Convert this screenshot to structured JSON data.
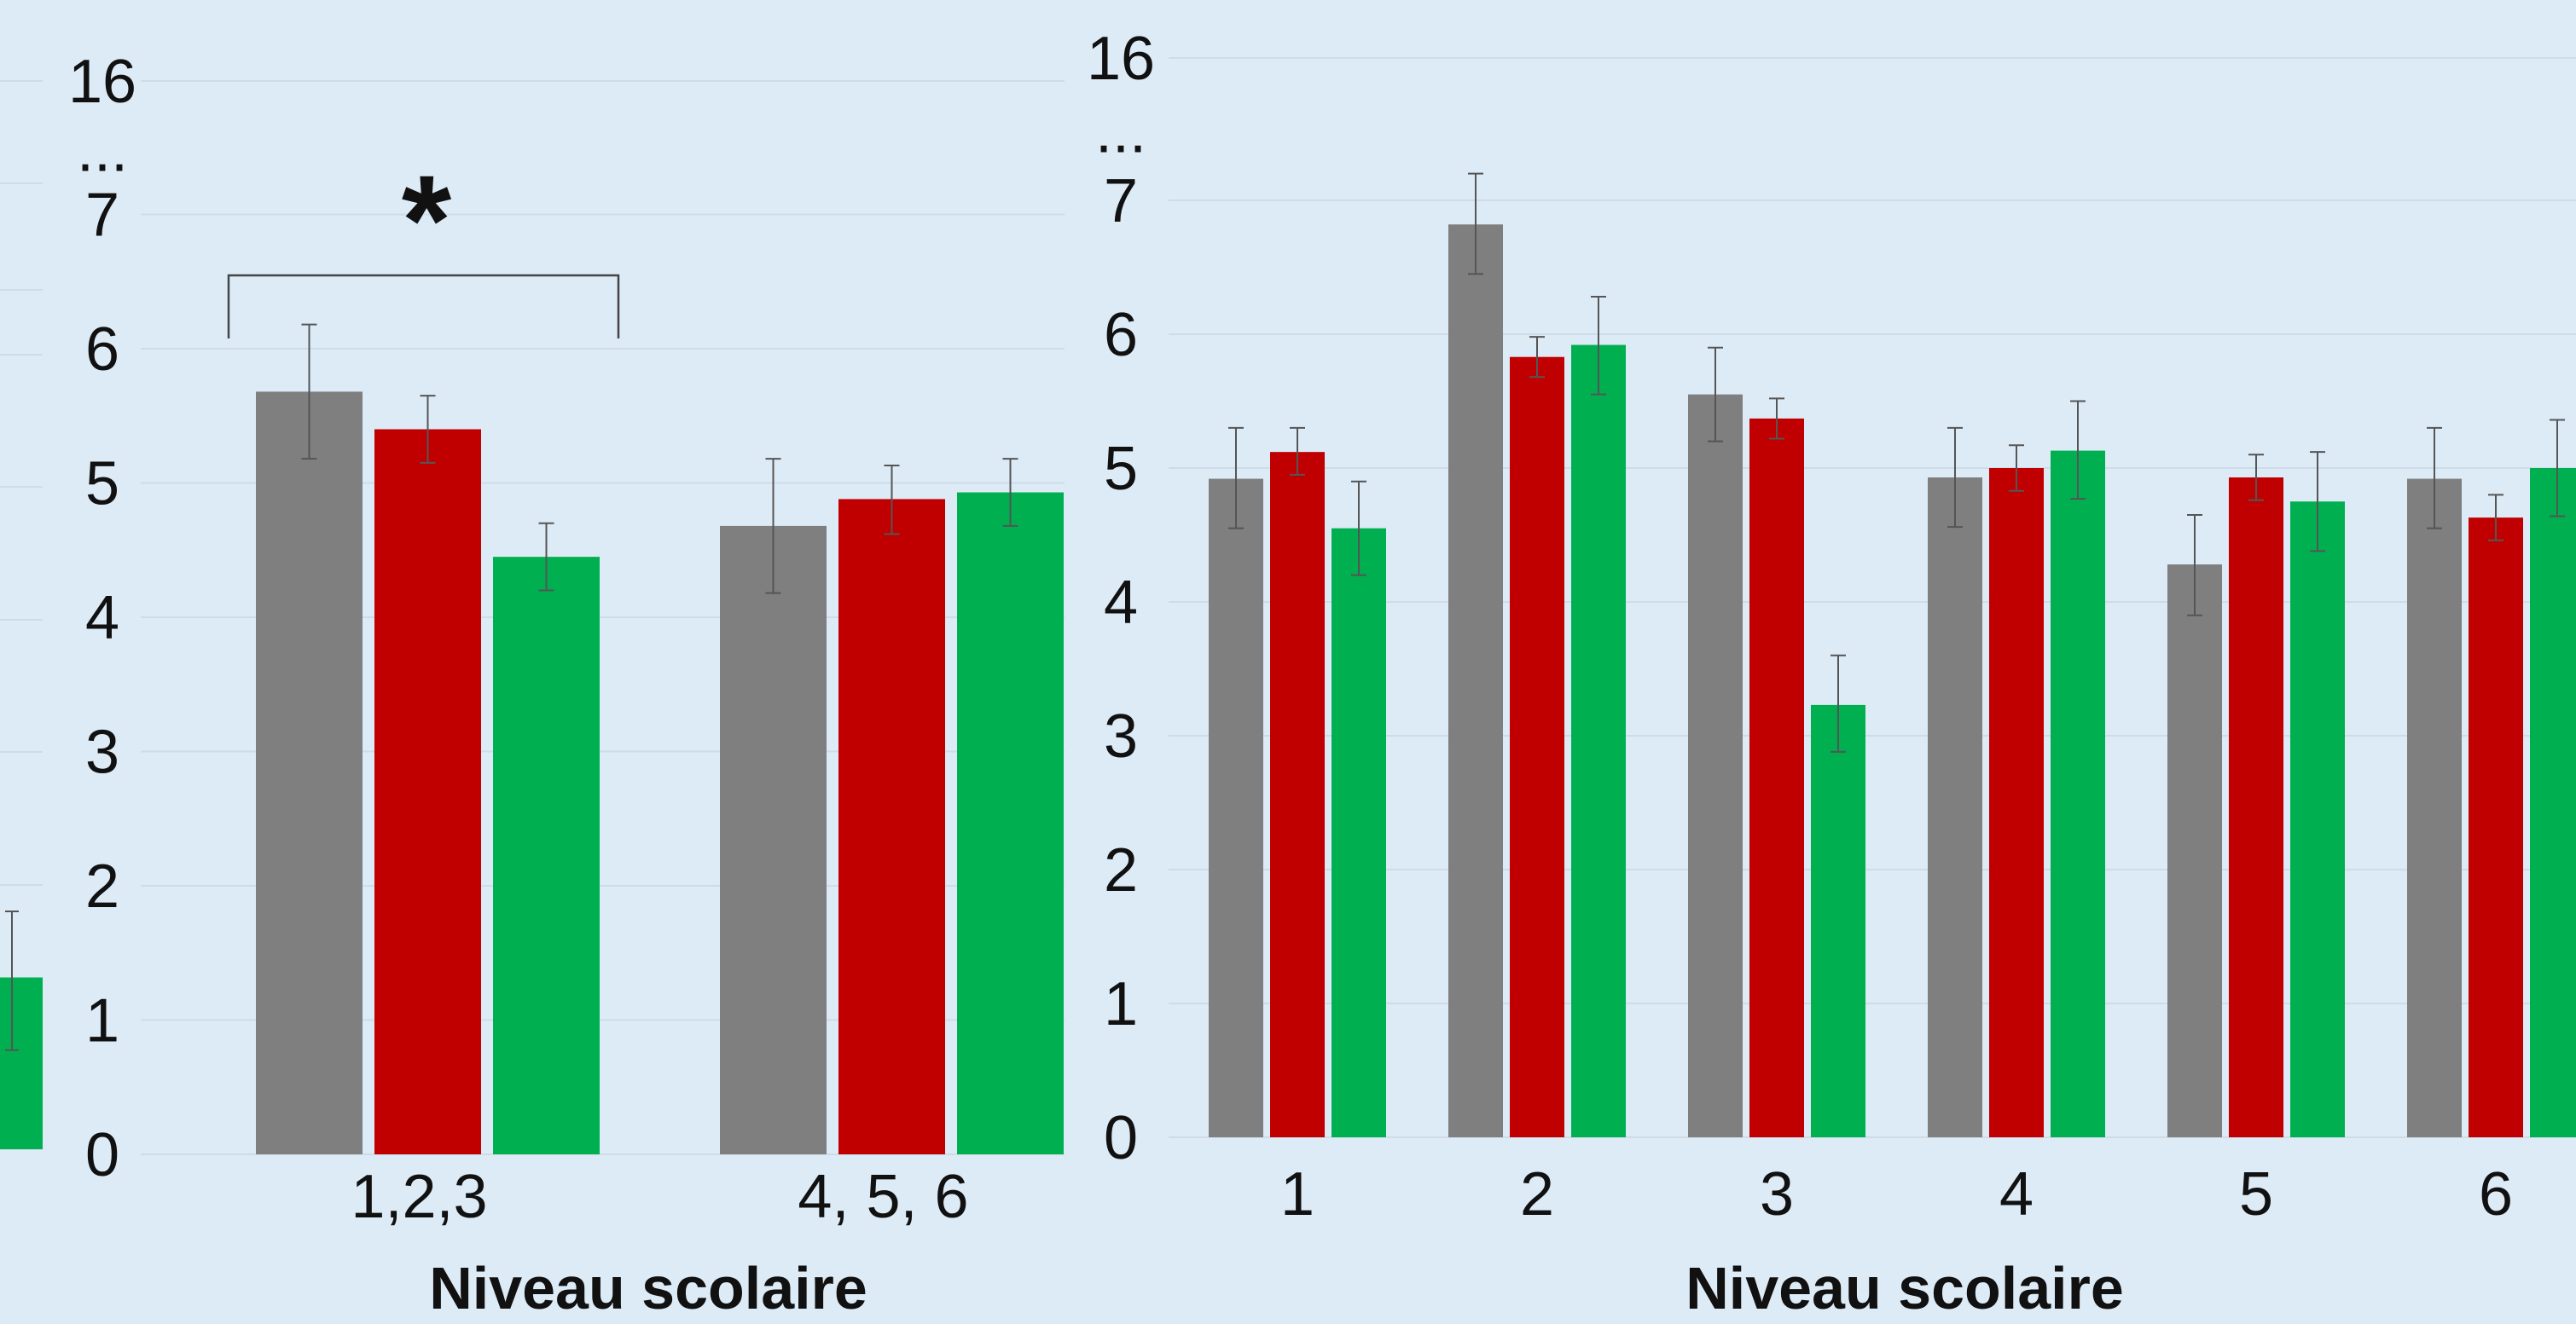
{
  "colors": {
    "gray": "#7f7f7f",
    "red": "#c00000",
    "green": "#00b050",
    "grid": "#cfdce8",
    "background": "#ddebf6"
  },
  "chart_data": [
    {
      "type": "bar",
      "partial": "left panel cropped, only last green bar with error bar visible",
      "series": [
        {
          "color": "#00b050",
          "values": [
            1.3
          ],
          "errors": [
            [
              0.75,
              1.8
            ]
          ]
        }
      ]
    },
    {
      "type": "bar",
      "xlabel": "Niveau scolaire",
      "categories": [
        "1,2,3",
        "4, 5, 6"
      ],
      "y_ticks": [
        "0",
        "1",
        "2",
        "3",
        "4",
        "5",
        "6",
        "7",
        "...",
        "16"
      ],
      "ylim": [
        0,
        7.5
      ],
      "grid": true,
      "series": [
        {
          "color": "#7f7f7f",
          "values": [
            5.68,
            4.68
          ],
          "errors": [
            [
              5.18,
              6.18
            ],
            [
              4.18,
              5.18
            ]
          ]
        },
        {
          "color": "#c00000",
          "values": [
            5.4,
            4.88
          ],
          "errors": [
            [
              5.15,
              5.65
            ],
            [
              4.62,
              5.13
            ]
          ]
        },
        {
          "color": "#00b050",
          "values": [
            4.45,
            4.93
          ],
          "errors": [
            [
              4.2,
              4.7
            ],
            [
              4.68,
              5.18
            ]
          ]
        }
      ],
      "annotation": {
        "text": "*",
        "bracket_between": [
          "1,2,3 gray",
          "1,2,3 green"
        ]
      }
    },
    {
      "type": "bar",
      "xlabel": "Niveau scolaire",
      "categories": [
        "1",
        "2",
        "3",
        "4",
        "5",
        "6"
      ],
      "y_ticks": [
        "0",
        "1",
        "2",
        "3",
        "4",
        "5",
        "6",
        "7",
        "...",
        "16"
      ],
      "ylim": [
        0,
        7.5
      ],
      "grid": true,
      "series": [
        {
          "color": "#7f7f7f",
          "values": [
            4.92,
            6.82,
            5.55,
            4.93,
            4.28,
            4.92
          ],
          "errors": [
            [
              4.55,
              5.3
            ],
            [
              6.45,
              7.2
            ],
            [
              5.2,
              5.9
            ],
            [
              4.56,
              5.3
            ],
            [
              3.9,
              4.65
            ],
            [
              4.55,
              5.3
            ]
          ]
        },
        {
          "color": "#c00000",
          "values": [
            5.12,
            5.83,
            5.37,
            5.0,
            4.93,
            4.63
          ],
          "errors": [
            [
              4.95,
              5.3
            ],
            [
              5.68,
              5.98
            ],
            [
              5.22,
              5.52
            ],
            [
              4.83,
              5.17
            ],
            [
              4.76,
              5.1
            ],
            [
              4.46,
              4.8
            ]
          ]
        },
        {
          "color": "#00b050",
          "values": [
            4.55,
            5.92,
            3.23,
            5.13,
            4.75,
            5.0
          ],
          "errors": [
            [
              4.2,
              4.9
            ],
            [
              5.55,
              6.28
            ],
            [
              2.88,
              3.6
            ],
            [
              4.77,
              5.5
            ],
            [
              4.38,
              5.12
            ],
            [
              4.64,
              5.36
            ]
          ]
        }
      ]
    }
  ]
}
